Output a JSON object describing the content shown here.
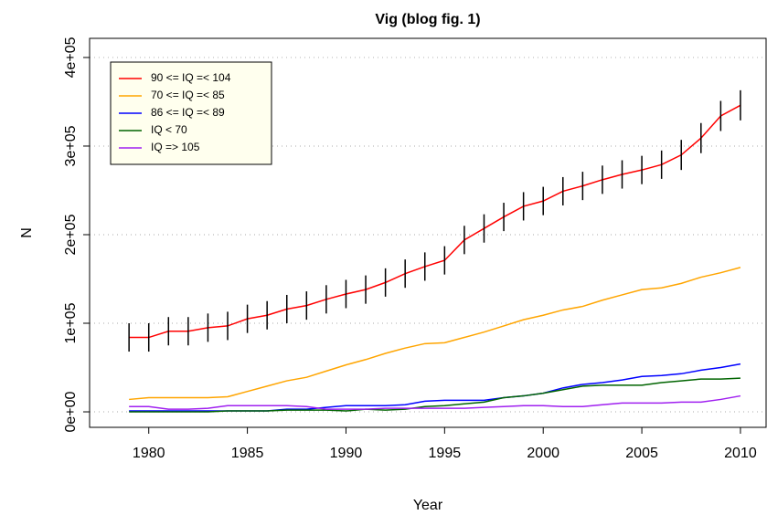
{
  "chart_data": {
    "type": "line",
    "title": "Vig (blog fig. 1)",
    "x_label": "Year",
    "y_label": "N",
    "x": [
      1979,
      1980,
      1981,
      1982,
      1983,
      1984,
      1985,
      1986,
      1987,
      1988,
      1989,
      1990,
      1991,
      1992,
      1993,
      1994,
      1995,
      1996,
      1997,
      1998,
      1999,
      2000,
      2001,
      2002,
      2003,
      2004,
      2005,
      2006,
      2007,
      2008,
      2009,
      2010
    ],
    "series": [
      {
        "name": "90 <= IQ =< 104",
        "color": "#ff0000",
        "values": [
          84000,
          84000,
          91000,
          91000,
          95000,
          97000,
          105000,
          109000,
          116000,
          120000,
          127000,
          133000,
          138000,
          146000,
          156000,
          164000,
          171000,
          194000,
          207000,
          220000,
          232000,
          238000,
          249000,
          255000,
          262000,
          268000,
          273000,
          279000,
          290000,
          309000,
          334000,
          346000
        ],
        "errors": [
          16000,
          16000,
          16000,
          16000,
          16000,
          16000,
          16000,
          16000,
          16000,
          16000,
          16000,
          16000,
          16000,
          16000,
          16000,
          16000,
          16000,
          16000,
          16000,
          16000,
          16000,
          16000,
          16000,
          16000,
          16000,
          16000,
          16000,
          16000,
          17000,
          17000,
          17000,
          17000
        ]
      },
      {
        "name": "70 <= IQ =< 85",
        "color": "#ffa500",
        "values": [
          14000,
          16000,
          16000,
          16000,
          16000,
          17000,
          23000,
          29000,
          35000,
          39000,
          46000,
          53000,
          59000,
          66000,
          72000,
          77000,
          78000,
          84000,
          90000,
          97000,
          104000,
          109000,
          115000,
          119000,
          126000,
          132000,
          138000,
          140000,
          145000,
          152000,
          157000,
          163000
        ]
      },
      {
        "name": "86 <= IQ =< 89",
        "color": "#0000ff",
        "values": [
          1000,
          1000,
          1000,
          1000,
          1000,
          1000,
          1000,
          1000,
          3000,
          3000,
          5000,
          7000,
          7000,
          7000,
          8000,
          12000,
          13000,
          13000,
          13000,
          16000,
          18000,
          21000,
          27000,
          31000,
          33000,
          36000,
          40000,
          41000,
          43000,
          47000,
          50000,
          54000
        ]
      },
      {
        "name": "IQ < 70",
        "color": "#006400",
        "values": [
          0,
          0,
          0,
          0,
          0,
          1000,
          1000,
          1000,
          2000,
          2000,
          2000,
          1000,
          3000,
          2000,
          3000,
          6000,
          7000,
          9000,
          11000,
          16000,
          18000,
          21000,
          25000,
          29000,
          30000,
          30000,
          30000,
          33000,
          35000,
          37000,
          37000,
          38000
        ]
      },
      {
        "name": "IQ => 105",
        "color": "#a020f0",
        "values": [
          6000,
          6000,
          3000,
          3000,
          4000,
          7000,
          7000,
          7000,
          7000,
          6000,
          3000,
          3000,
          3000,
          4000,
          4000,
          4000,
          4000,
          4000,
          5000,
          6000,
          7000,
          7000,
          6000,
          6000,
          8000,
          10000,
          10000,
          10000,
          11000,
          11000,
          14000,
          18000
        ]
      }
    ],
    "xlim": [
      1977,
      2011.3
    ],
    "xticks": [
      1980,
      1985,
      1990,
      1995,
      2000,
      2005,
      2010
    ],
    "ylim": [
      -17500,
      421600
    ],
    "yticks": [
      {
        "value": 0,
        "label": "0e+00"
      },
      {
        "value": 100000,
        "label": "1e+05"
      },
      {
        "value": 200000,
        "label": "2e+05"
      },
      {
        "value": 300000,
        "label": "3e+05"
      },
      {
        "value": 400000,
        "label": "4e+05"
      }
    ],
    "grid": true,
    "legend_position": "top-left",
    "legend_fill": "#ffffee"
  }
}
